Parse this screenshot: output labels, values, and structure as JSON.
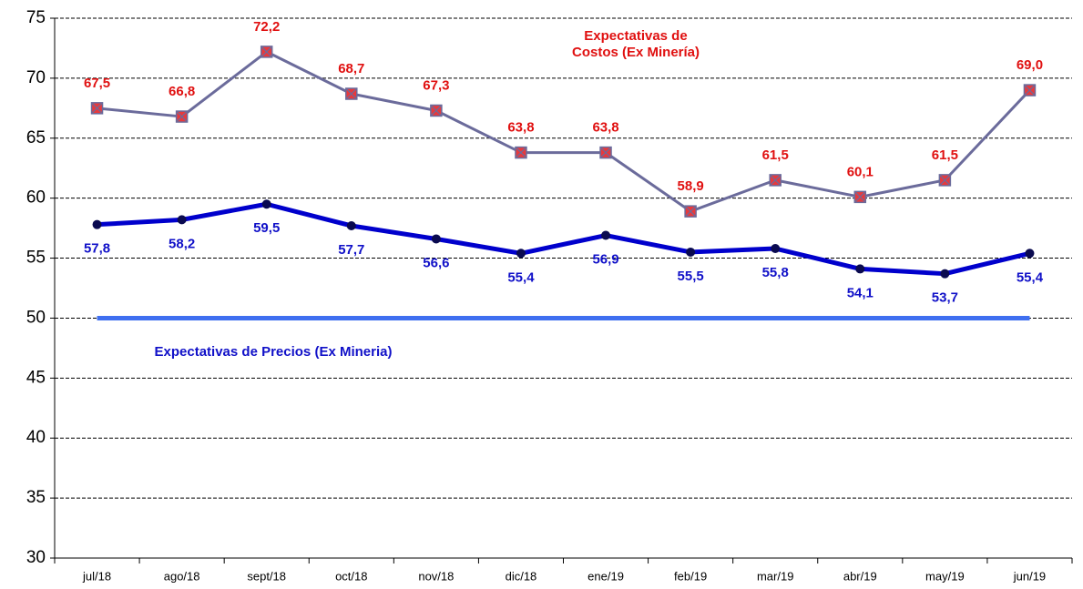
{
  "chart_data": {
    "type": "line",
    "categories": [
      "jul/18",
      "ago/18",
      "sept/18",
      "oct/18",
      "nov/18",
      "dic/18",
      "ene/19",
      "feb/19",
      "mar/19",
      "abr/19",
      "may/19",
      "jun/19"
    ],
    "series": [
      {
        "name": "Expectativas de Costos (Ex Minería)",
        "color": "#6b6b9b",
        "marker": "square",
        "marker_color": "#e8393c",
        "label_color": "#e01010",
        "label_position": "above",
        "values": [
          67.5,
          66.8,
          72.2,
          68.7,
          67.3,
          63.8,
          63.8,
          58.9,
          61.5,
          60.1,
          61.5,
          69.0
        ],
        "value_labels": [
          "67,5",
          "66,8",
          "72,2",
          "68,7",
          "67,3",
          "63,8",
          "63,8",
          "58,9",
          "61,5",
          "60,1",
          "61,5",
          "69,0"
        ]
      },
      {
        "name": "Expectativas de Precios (Ex Mineria)",
        "color": "#0000cc",
        "marker": "circle",
        "marker_color": "#0a0a50",
        "label_color": "#1010c8",
        "label_position": "below",
        "values": [
          57.8,
          58.2,
          59.5,
          57.7,
          56.6,
          55.4,
          56.9,
          55.5,
          55.8,
          54.1,
          53.7,
          55.4
        ],
        "value_labels": [
          "57,8",
          "58,2",
          "59,5",
          "57,7",
          "56,6",
          "55,4",
          "56,9",
          "55,5",
          "55,8",
          "54,1",
          "53,7",
          "55,4"
        ]
      }
    ],
    "reference_line": {
      "value": 50,
      "color": "#3f6ff0"
    },
    "annotations": [
      {
        "lines": [
          "Expectativas de",
          "Costos  (Ex Minería)"
        ],
        "color": "#e01010"
      },
      {
        "lines": [
          "Expectativas de Precios (Ex Mineria)"
        ],
        "color": "#1010c8"
      }
    ],
    "ylim": [
      30,
      75
    ],
    "yticks": [
      30,
      35,
      40,
      45,
      50,
      55,
      60,
      65,
      70,
      75
    ],
    "grid": true
  }
}
